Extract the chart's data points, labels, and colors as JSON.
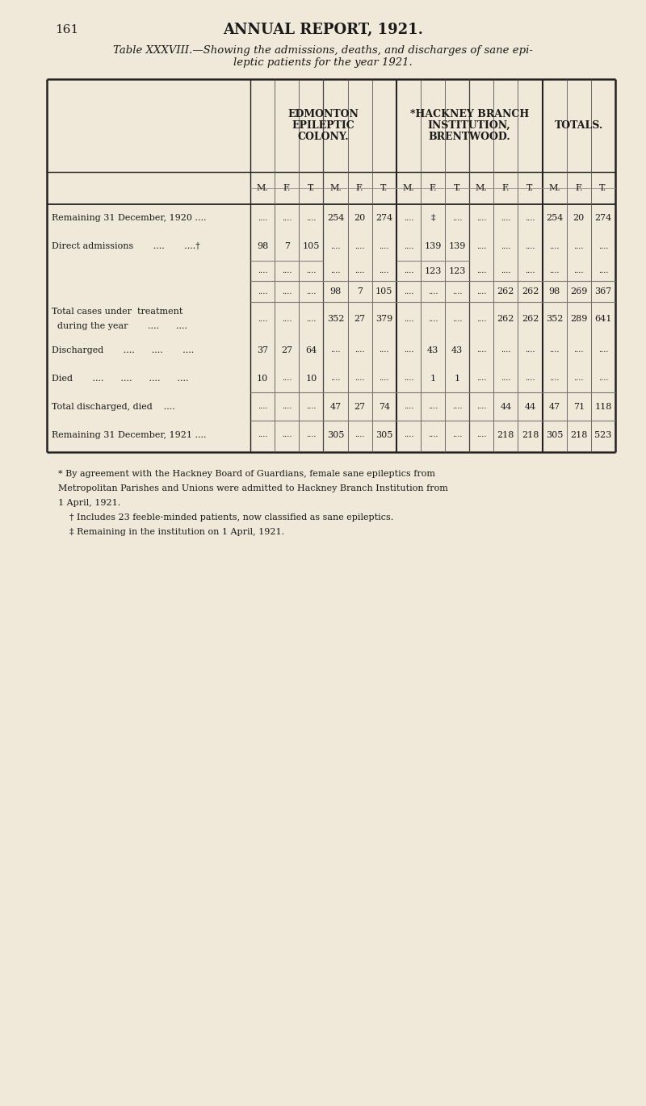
{
  "page_number": "161",
  "page_title": "ANNUAL REPORT, 1921.",
  "table_title_line1": "Table XXXVIII.—Showing the admissions, deaths, and discharges of sane epi-",
  "table_title_line2": "leptic patients for the year 1921.",
  "bg_color": "#f0e8d8",
  "text_color": "#1a1a1a",
  "footnotes": [
    "* By agreement with the Hackney Board of Guardians, female sane epileptics from",
    "Metropolitan Parishes and Unions were admitted to Hackney Branch Institution from",
    "1 April, 1921.",
    "† Includes 23 feeble-minded patients, now classified as sane epileptics.",
    "‡ Remaining in the institution on 1 April, 1921."
  ],
  "rows": [
    {
      "label": [
        "Remaining 31 December, 1920 ...."
      ],
      "cells": [
        "....",
        "....",
        "....",
        "254",
        "20",
        "274",
        "....",
        "‡",
        "....",
        "....",
        "....",
        "....",
        "254",
        "20",
        "274"
      ],
      "line_above": false
    },
    {
      "label": [
        "Direct admissions       ....       ....†"
      ],
      "cells": [
        "98",
        "7",
        "105",
        "....",
        "....",
        "....",
        "....",
        "139",
        "139",
        "....",
        "....",
        "....",
        "....",
        "....",
        "...."
      ],
      "line_above": false
    },
    {
      "label": [],
      "cells": [
        "....",
        "....",
        "....",
        "....",
        "....",
        "....",
        "....",
        "123",
        "123",
        "....",
        "....",
        "....",
        "....",
        "....",
        "...."
      ],
      "line_above": false
    },
    {
      "label": [],
      "cells": [
        "....",
        "....",
        "....",
        "98",
        "7",
        "105",
        "....",
        "....",
        "....",
        "....",
        "262",
        "262",
        "98",
        "269",
        "367"
      ],
      "line_above": true,
      "partial_line": [
        0,
        3
      ]
    },
    {
      "label": [
        "Total cases under  treatment",
        "  during the year       ....      ...."
      ],
      "cells": [
        "....",
        "....",
        "....",
        "352",
        "27",
        "379",
        "....",
        "....",
        "....",
        "....",
        "262",
        "262",
        "352",
        "289",
        "641"
      ],
      "line_above": true
    },
    {
      "label": [
        "Discharged       ....      ....       ...."
      ],
      "cells": [
        "37",
        "27",
        "64",
        "....",
        "....",
        "....",
        "....",
        "43",
        "43",
        "....",
        "....",
        "....",
        "....",
        "....",
        "...."
      ],
      "line_above": false
    },
    {
      "label": [
        "Died       ....      ....      ....      ...."
      ],
      "cells": [
        "10",
        "....",
        "10",
        "....",
        "....",
        "....",
        "....",
        "1",
        "1",
        "....",
        "....",
        "....",
        "....",
        "....",
        "...."
      ],
      "line_above": false
    },
    {
      "label": [
        "Total discharged, died    ...."
      ],
      "cells": [
        "....",
        "....",
        "....",
        "47",
        "27",
        "74",
        "....",
        "....",
        "....",
        "....",
        "44",
        "44",
        "47",
        "71",
        "118"
      ],
      "line_above": true
    },
    {
      "label": [
        "Remaining 31 December, 1921 ...."
      ],
      "cells": [
        "....",
        "....",
        "....",
        "305",
        "....",
        "305",
        "....",
        "....",
        "....",
        "....",
        "218",
        "218",
        "305",
        "218",
        "523"
      ],
      "line_above": true
    }
  ]
}
